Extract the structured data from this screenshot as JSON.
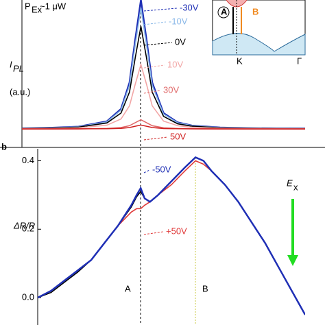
{
  "chart_data": [
    {
      "type": "line",
      "xlim": [
        0,
        100
      ],
      "ylim": [
        -0.12,
        1.0
      ],
      "annotations": [
        "P",
        "Ex",
        "~1 μW",
        "I",
        "PL",
        "(a.u.)",
        "A",
        "B",
        "K",
        "Γ"
      ],
      "x": [
        0,
        10,
        20,
        30,
        35,
        38,
        40,
        42,
        44,
        46,
        50,
        55,
        60,
        70,
        80,
        90,
        100
      ],
      "series": [
        {
          "name": "-30V",
          "color": "#1f2fb5",
          "values": [
            0.025,
            0.029,
            0.038,
            0.078,
            0.172,
            0.373,
            0.698,
            1.0,
            0.698,
            0.373,
            0.141,
            0.07,
            0.046,
            0.031,
            0.026,
            0.024,
            0.023
          ]
        },
        {
          "name": "-10V",
          "color": "#8ab8e8",
          "values": [
            0.025,
            0.028,
            0.037,
            0.074,
            0.163,
            0.351,
            0.657,
            0.94,
            0.657,
            0.351,
            0.133,
            0.067,
            0.045,
            0.03,
            0.026,
            0.024,
            0.022
          ]
        },
        {
          "name": "0V",
          "color": "#000000",
          "values": [
            0.024,
            0.027,
            0.034,
            0.066,
            0.141,
            0.301,
            0.56,
            0.8,
            0.56,
            0.301,
            0.116,
            0.059,
            0.041,
            0.029,
            0.025,
            0.023,
            0.022
          ]
        },
        {
          "name": "10V",
          "color": "#f2a6a6",
          "values": [
            0.022,
            0.024,
            0.029,
            0.049,
            0.096,
            0.196,
            0.359,
            0.51,
            0.359,
            0.196,
            0.08,
            0.045,
            0.033,
            0.026,
            0.023,
            0.022,
            0.021
          ]
        },
        {
          "name": "30V",
          "color": "#e06a6a",
          "values": [
            0.02,
            0.021,
            0.021,
            0.024,
            0.031,
            0.045,
            0.068,
            0.09,
            0.068,
            0.045,
            0.029,
            0.024,
            0.022,
            0.021,
            0.02,
            0.02,
            0.02
          ]
        },
        {
          "name": "50V",
          "color": "#d02020",
          "values": [
            0.02,
            0.02,
            0.021,
            0.022,
            0.025,
            0.031,
            0.041,
            0.05,
            0.041,
            0.031,
            0.024,
            0.022,
            0.021,
            0.02,
            0.02,
            0.02,
            0.02
          ]
        }
      ]
    },
    {
      "type": "line",
      "xlim": [
        0,
        100
      ],
      "ylim": [
        -0.08,
        0.435
      ],
      "yticks": [
        {
          "value": 0,
          "label": "0.0"
        },
        0.2,
        0.4
      ],
      "annotations": [
        "b",
        "ΔR/R",
        "A",
        "B",
        "E",
        "x"
      ],
      "x": [
        0,
        5,
        10,
        15,
        20,
        25,
        30,
        35,
        37,
        38.5,
        40,
        42,
        45,
        50,
        55,
        59,
        62,
        65,
        70,
        75,
        80,
        85,
        90,
        95,
        100
      ],
      "series": [
        {
          "name": "+50V",
          "color": "#e03a3a",
          "values": [
            0.0,
            0.02,
            0.05,
            0.08,
            0.11,
            0.16,
            0.21,
            0.25,
            0.26,
            0.26,
            0.27,
            0.28,
            0.3,
            0.33,
            0.37,
            0.4,
            0.39,
            0.37,
            0.33,
            0.28,
            0.22,
            0.16,
            0.09,
            0.02,
            -0.05
          ]
        },
        {
          "color": "#000000",
          "values": [
            0.0,
            0.015,
            0.045,
            0.075,
            0.11,
            0.16,
            0.21,
            0.265,
            0.295,
            0.31,
            0.29,
            0.28,
            0.3,
            0.34,
            0.38,
            0.41,
            0.4,
            0.37,
            0.33,
            0.28,
            0.22,
            0.16,
            0.09,
            0.02,
            -0.05
          ]
        },
        {
          "name": "-50V",
          "color": "#1f2fb5",
          "values": [
            0.0,
            0.02,
            0.05,
            0.08,
            0.11,
            0.16,
            0.21,
            0.27,
            0.3,
            0.32,
            0.29,
            0.28,
            0.3,
            0.34,
            0.38,
            0.41,
            0.4,
            0.37,
            0.33,
            0.28,
            0.22,
            0.16,
            0.09,
            0.02,
            -0.05
          ]
        }
      ]
    }
  ]
}
